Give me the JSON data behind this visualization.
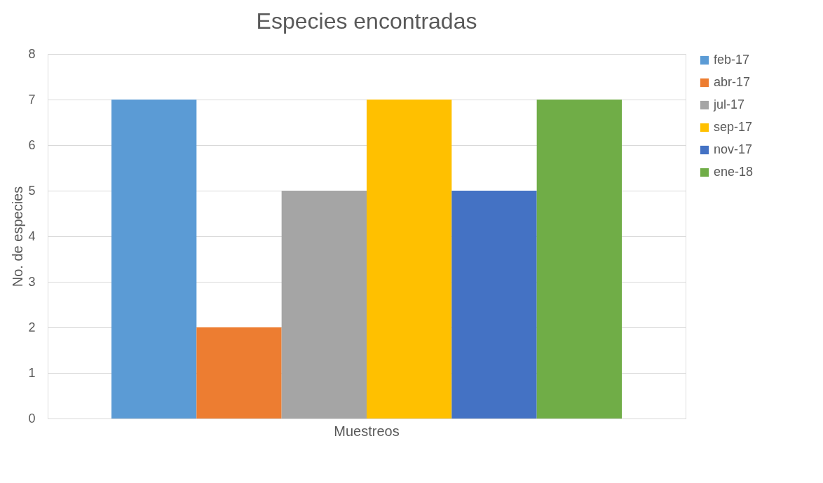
{
  "chart_data": {
    "type": "bar",
    "title": "Especies encontradas",
    "ylabel": "No. de especies",
    "categories": [
      "Muestreos"
    ],
    "series": [
      {
        "name": "feb-17",
        "color": "#5b9bd5",
        "values": [
          7
        ]
      },
      {
        "name": "abr-17",
        "color": "#ed7d31",
        "values": [
          2
        ]
      },
      {
        "name": "jul-17",
        "color": "#a5a5a5",
        "values": [
          5
        ]
      },
      {
        "name": "sep-17",
        "color": "#ffc000",
        "values": [
          7
        ]
      },
      {
        "name": "nov-17",
        "color": "#4472c4",
        "values": [
          5
        ]
      },
      {
        "name": "ene-18",
        "color": "#70ad47",
        "values": [
          7
        ]
      }
    ],
    "ylim": [
      0,
      8
    ],
    "yticks": [
      0,
      1,
      2,
      3,
      4,
      5,
      6,
      7,
      8
    ],
    "grid": "y",
    "legend": "right"
  }
}
